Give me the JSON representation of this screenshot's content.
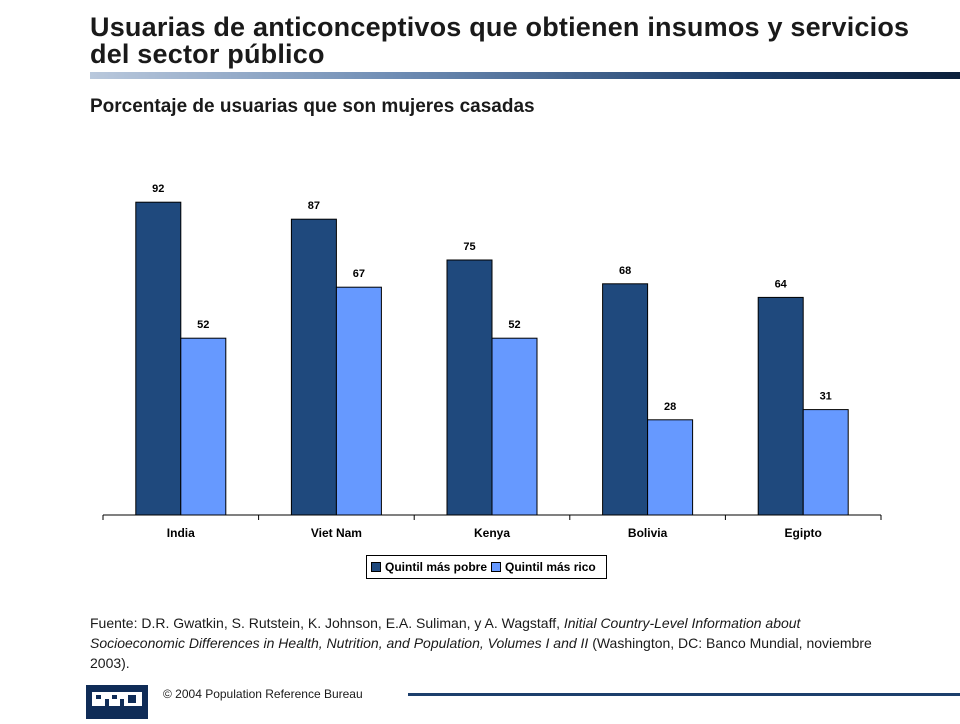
{
  "title": "Usuarias de anticonceptivos que obtienen insumos y servicios del sector público",
  "subtitle": "Porcentaje de usuarias que son mujeres casadas",
  "colors": {
    "poor": "#1f497d",
    "rich": "#6699ff",
    "accent": "#1d3f6c"
  },
  "chart_data": {
    "type": "bar",
    "categories": [
      "India",
      "Viet Nam",
      "Kenya",
      "Bolivia",
      "Egipto"
    ],
    "series": [
      {
        "name": "Quintil más pobre",
        "values": [
          92,
          87,
          75,
          68,
          64
        ]
      },
      {
        "name": "Quintil más rico",
        "values": [
          52,
          67,
          52,
          28,
          31
        ]
      }
    ],
    "ylim": [
      0,
      100
    ],
    "legend": "bottom",
    "grid": false
  },
  "source": {
    "prefix": "Fuente: D.R. Gwatkin, S. Rutstein, K. Johnson, E.A. Suliman, y A. Wagstaff, ",
    "italic": "Initial Country-Level Information about Socioeconomic Differences in Health, Nutrition, and Population, Volumes I and II",
    "suffix": " (Washington, DC: Banco Mundial, noviembre 2003)."
  },
  "footer": {
    "logo_text": "PRB",
    "copyright": "© 2004  Population Reference Bureau"
  }
}
